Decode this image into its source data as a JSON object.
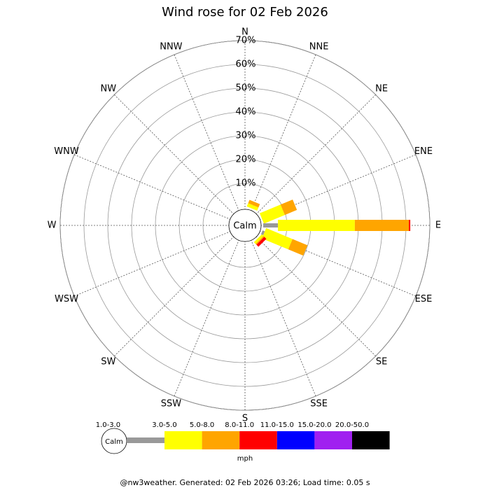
{
  "chart_data": {
    "type": "windrose",
    "title": "Wind rose for 02 Feb 2026",
    "categories": [
      "N",
      "NNE",
      "NE",
      "ENE",
      "E",
      "ESE",
      "SE",
      "SSE",
      "S",
      "SSW",
      "SW",
      "WSW",
      "W",
      "WNW",
      "NW",
      "NNW"
    ],
    "calm_label": "Calm",
    "unit": "mph",
    "rlim": [
      0,
      70
    ],
    "rticks": [
      {
        "value": 10,
        "label": "10%"
      },
      {
        "value": 20,
        "label": "20%"
      },
      {
        "value": 30,
        "label": "30%"
      },
      {
        "value": 40,
        "label": "40%"
      },
      {
        "value": 50,
        "label": "50%"
      },
      {
        "value": 60,
        "label": "60%"
      },
      {
        "value": 70,
        "label": "70%"
      }
    ],
    "series": [
      {
        "name": "1.0-3.0",
        "color": "#999999",
        "values": [
          0,
          0,
          0,
          0,
          6.2,
          1,
          0,
          0,
          0,
          0,
          0,
          0,
          0,
          0,
          0,
          0
        ]
      },
      {
        "name": "3.0-5.0",
        "color": "#ffff00",
        "values": [
          0,
          1.5,
          0,
          9.5,
          32.3,
          12,
          1,
          0,
          0,
          0,
          0,
          0,
          0,
          0,
          0,
          0
        ]
      },
      {
        "name": "5.0-8.0",
        "color": "#ffa500",
        "values": [
          0,
          1.5,
          0,
          5.5,
          22.7,
          6.8,
          0.5,
          0,
          0,
          0,
          0,
          0,
          0,
          0,
          0,
          0
        ]
      },
      {
        "name": "8.0-11.0",
        "color": "#ff0000",
        "values": [
          0,
          0,
          0,
          0,
          0.6,
          0,
          1.2,
          0,
          0,
          0,
          0,
          0,
          0,
          0,
          0,
          0
        ]
      },
      {
        "name": "11.0-15.0",
        "color": "#0000ff",
        "values": [
          0,
          0,
          0,
          0,
          0,
          0,
          0,
          0,
          0,
          0,
          0,
          0,
          0,
          0,
          0,
          0
        ]
      },
      {
        "name": "15.0-20.0",
        "color": "#a020f0",
        "values": [
          0,
          0,
          0,
          0,
          0,
          0,
          0,
          0,
          0,
          0,
          0,
          0,
          0,
          0,
          0,
          0
        ]
      },
      {
        "name": "20.0-50.0",
        "color": "#000000",
        "values": [
          0,
          0,
          0,
          0,
          0,
          0,
          0,
          0,
          0,
          0,
          0,
          0,
          0,
          0,
          0,
          0
        ]
      }
    ],
    "footer": "@nw3weather. Generated: 02 Feb 2026 03:26; Load time: 0.05 s"
  }
}
